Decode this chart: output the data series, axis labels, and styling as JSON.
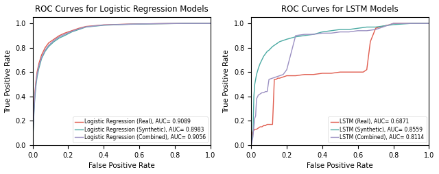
{
  "lr_title": "ROC Curves for Logistic Regression Models",
  "lstm_title": "ROC Curves for LSTM Models",
  "xlabel": "False Positive Rate",
  "ylabel": "True Positive Rate",
  "lr_curves": {
    "real": {
      "label": "Logistic Regression (Real), AUC= 0.9089",
      "color": "#e05c4e",
      "fpr": [
        0.0,
        0.002,
        0.005,
        0.008,
        0.012,
        0.018,
        0.025,
        0.035,
        0.05,
        0.07,
        0.09,
        0.12,
        0.15,
        0.18,
        0.22,
        0.26,
        0.3,
        0.4,
        0.55,
        0.7,
        0.85,
        1.0
      ],
      "tpr": [
        0.0,
        0.1,
        0.22,
        0.32,
        0.42,
        0.52,
        0.6,
        0.67,
        0.74,
        0.8,
        0.84,
        0.87,
        0.9,
        0.92,
        0.94,
        0.96,
        0.975,
        0.988,
        0.995,
        0.998,
        1.0,
        1.0
      ]
    },
    "synthetic": {
      "label": "Logistic Regression (Synthetic), AUC= 0.8983",
      "color": "#4baaa3",
      "fpr": [
        0.0,
        0.002,
        0.005,
        0.008,
        0.012,
        0.018,
        0.025,
        0.035,
        0.05,
        0.07,
        0.09,
        0.12,
        0.15,
        0.18,
        0.22,
        0.26,
        0.3,
        0.4,
        0.55,
        0.7,
        0.85,
        1.0
      ],
      "tpr": [
        0.0,
        0.08,
        0.18,
        0.28,
        0.38,
        0.48,
        0.56,
        0.63,
        0.71,
        0.77,
        0.81,
        0.85,
        0.88,
        0.9,
        0.93,
        0.95,
        0.97,
        0.985,
        0.993,
        0.997,
        1.0,
        1.0
      ]
    },
    "combined": {
      "label": "Logistic Regression (Combined), AUC= 0.9056",
      "color": "#9b90c2",
      "fpr": [
        0.0,
        0.002,
        0.005,
        0.008,
        0.012,
        0.018,
        0.025,
        0.035,
        0.05,
        0.07,
        0.09,
        0.12,
        0.15,
        0.18,
        0.22,
        0.26,
        0.3,
        0.4,
        0.55,
        0.7,
        0.85,
        1.0
      ],
      "tpr": [
        0.0,
        0.09,
        0.2,
        0.3,
        0.4,
        0.5,
        0.58,
        0.65,
        0.72,
        0.78,
        0.82,
        0.86,
        0.89,
        0.91,
        0.935,
        0.955,
        0.972,
        0.987,
        0.994,
        0.998,
        1.0,
        1.0
      ]
    }
  },
  "lstm_curves": {
    "real": {
      "label": "LSTM (Real), AUC= 0.6871",
      "color": "#e05c4e",
      "fpr": [
        0.0,
        0.005,
        0.01,
        0.015,
        0.02,
        0.03,
        0.04,
        0.05,
        0.06,
        0.07,
        0.08,
        0.09,
        0.1,
        0.11,
        0.12,
        0.125,
        0.13,
        0.14,
        0.15,
        0.16,
        0.18,
        0.2,
        0.25,
        0.3,
        0.35,
        0.4,
        0.45,
        0.5,
        0.55,
        0.6,
        0.61,
        0.62,
        0.63,
        0.65,
        0.67,
        0.7,
        0.72,
        0.75,
        0.78,
        0.8,
        0.85,
        0.9,
        1.0
      ],
      "tpr": [
        0.0,
        0.1,
        0.12,
        0.12,
        0.13,
        0.13,
        0.14,
        0.15,
        0.15,
        0.16,
        0.16,
        0.17,
        0.17,
        0.17,
        0.17,
        0.35,
        0.54,
        0.54,
        0.55,
        0.55,
        0.56,
        0.57,
        0.57,
        0.58,
        0.58,
        0.59,
        0.59,
        0.6,
        0.6,
        0.6,
        0.6,
        0.6,
        0.6,
        0.62,
        0.85,
        0.96,
        0.97,
        0.98,
        0.99,
        1.0,
        1.0,
        1.0,
        1.0
      ]
    },
    "synthetic": {
      "label": "LSTM (Synthetic), AUC= 0.8559",
      "color": "#4baaa3",
      "fpr": [
        0.0,
        0.005,
        0.01,
        0.015,
        0.02,
        0.03,
        0.04,
        0.05,
        0.06,
        0.07,
        0.08,
        0.09,
        0.1,
        0.12,
        0.14,
        0.16,
        0.18,
        0.2,
        0.25,
        0.3,
        0.35,
        0.4,
        0.45,
        0.5,
        0.55,
        0.6,
        0.65,
        0.7,
        0.75,
        0.8,
        0.9,
        1.0
      ],
      "tpr": [
        0.0,
        0.05,
        0.1,
        0.4,
        0.5,
        0.58,
        0.63,
        0.67,
        0.7,
        0.73,
        0.75,
        0.77,
        0.78,
        0.81,
        0.83,
        0.85,
        0.86,
        0.87,
        0.89,
        0.9,
        0.91,
        0.93,
        0.94,
        0.95,
        0.95,
        0.96,
        0.97,
        0.97,
        0.98,
        0.99,
        1.0,
        1.0
      ]
    },
    "combined": {
      "label": "LSTM (Combined), AUC= 0.8114",
      "color": "#9b90c2",
      "fpr": [
        0.0,
        0.005,
        0.01,
        0.015,
        0.02,
        0.025,
        0.03,
        0.04,
        0.05,
        0.06,
        0.07,
        0.08,
        0.09,
        0.1,
        0.12,
        0.14,
        0.16,
        0.18,
        0.2,
        0.25,
        0.3,
        0.35,
        0.4,
        0.45,
        0.5,
        0.55,
        0.6,
        0.65,
        0.7,
        0.8,
        0.9,
        1.0
      ],
      "tpr": [
        0.0,
        0.03,
        0.07,
        0.15,
        0.22,
        0.24,
        0.38,
        0.41,
        0.42,
        0.43,
        0.43,
        0.44,
        0.44,
        0.54,
        0.55,
        0.56,
        0.57,
        0.58,
        0.62,
        0.9,
        0.91,
        0.91,
        0.92,
        0.92,
        0.93,
        0.93,
        0.94,
        0.94,
        0.95,
        1.0,
        1.0,
        1.0
      ]
    }
  },
  "legend_loc": "lower right",
  "xlim": [
    0.0,
    1.0
  ],
  "ylim": [
    0.0,
    1.05
  ],
  "background_color": "#ffffff",
  "title_fontsize": 8.5,
  "label_fontsize": 7.5,
  "tick_fontsize": 7,
  "legend_fontsize": 5.5
}
